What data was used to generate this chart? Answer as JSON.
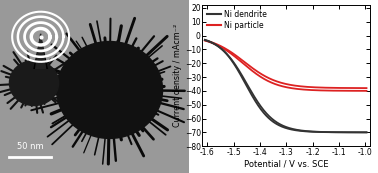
{
  "xlim": [
    -1.62,
    -0.98
  ],
  "ylim": [
    -80,
    22
  ],
  "yticks": [
    20,
    10,
    0,
    -10,
    -20,
    -30,
    -40,
    -50,
    -60,
    -70,
    -80
  ],
  "xticks": [
    -1.6,
    -1.5,
    -1.4,
    -1.3,
    -1.2,
    -1.1,
    -1.0
  ],
  "xlabel": "Potential / V vs. SCE",
  "ylabel": "Current density / mAcm⁻²",
  "legend_entries": [
    "Ni dendrite",
    "Ni particle"
  ],
  "dendrite_color": "#333333",
  "particle_color": "#dd2222",
  "bg_color": "#ffffff",
  "image_bg": "#888888",
  "inset_bg": "#000000",
  "scale_bar_color": "#ffffff",
  "scale_bar_text": "50 nm"
}
